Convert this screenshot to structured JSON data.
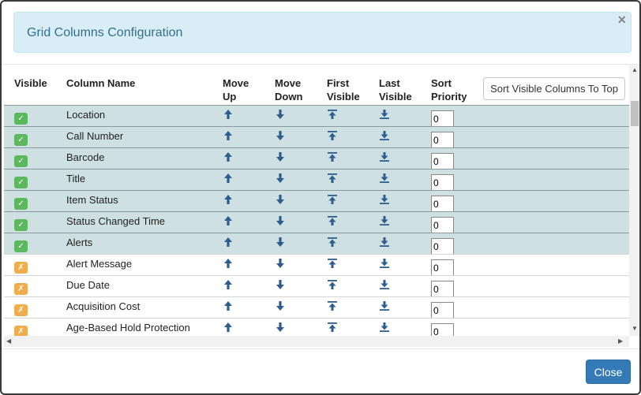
{
  "dialog": {
    "title": "Grid Columns Configuration",
    "close_glyph": "×",
    "close_button_label": "Close"
  },
  "columns": {
    "visible": "Visible",
    "column_name": "Column Name",
    "move_up": [
      "Move",
      "Up"
    ],
    "move_down": [
      "Move",
      "Down"
    ],
    "first_visible": [
      "First",
      "Visible"
    ],
    "last_visible": [
      "Last",
      "Visible"
    ],
    "sort_priority": [
      "Sort",
      "Priority"
    ]
  },
  "sort_visible_button": "Sort Visible Columns To Top",
  "rows": [
    {
      "name": "Location",
      "visible": true,
      "priority": "0"
    },
    {
      "name": "Call Number",
      "visible": true,
      "priority": "0"
    },
    {
      "name": "Barcode",
      "visible": true,
      "priority": "0"
    },
    {
      "name": "Title",
      "visible": true,
      "priority": "0"
    },
    {
      "name": "Item Status",
      "visible": true,
      "priority": "0"
    },
    {
      "name": "Status Changed Time",
      "visible": true,
      "priority": "0"
    },
    {
      "name": "Alerts",
      "visible": true,
      "priority": "0"
    },
    {
      "name": "Alert Message",
      "visible": false,
      "priority": "0"
    },
    {
      "name": "Due Date",
      "visible": false,
      "priority": "0"
    },
    {
      "name": "Acquisition Cost",
      "visible": false,
      "priority": "0"
    },
    {
      "name": "Age-Based Hold Protection",
      "visible": false,
      "priority": "0"
    }
  ],
  "icons": {
    "visible_on": "✓",
    "visible_off": "✗"
  },
  "colors": {
    "header_bg": "#d9edf7",
    "header_text": "#31708f",
    "visible_row": "#cfe0e3",
    "badge_on": "#5cb85c",
    "badge_off": "#f0ad4e",
    "arrow": "#2c5d8f",
    "primary_button": "#337ab7"
  }
}
